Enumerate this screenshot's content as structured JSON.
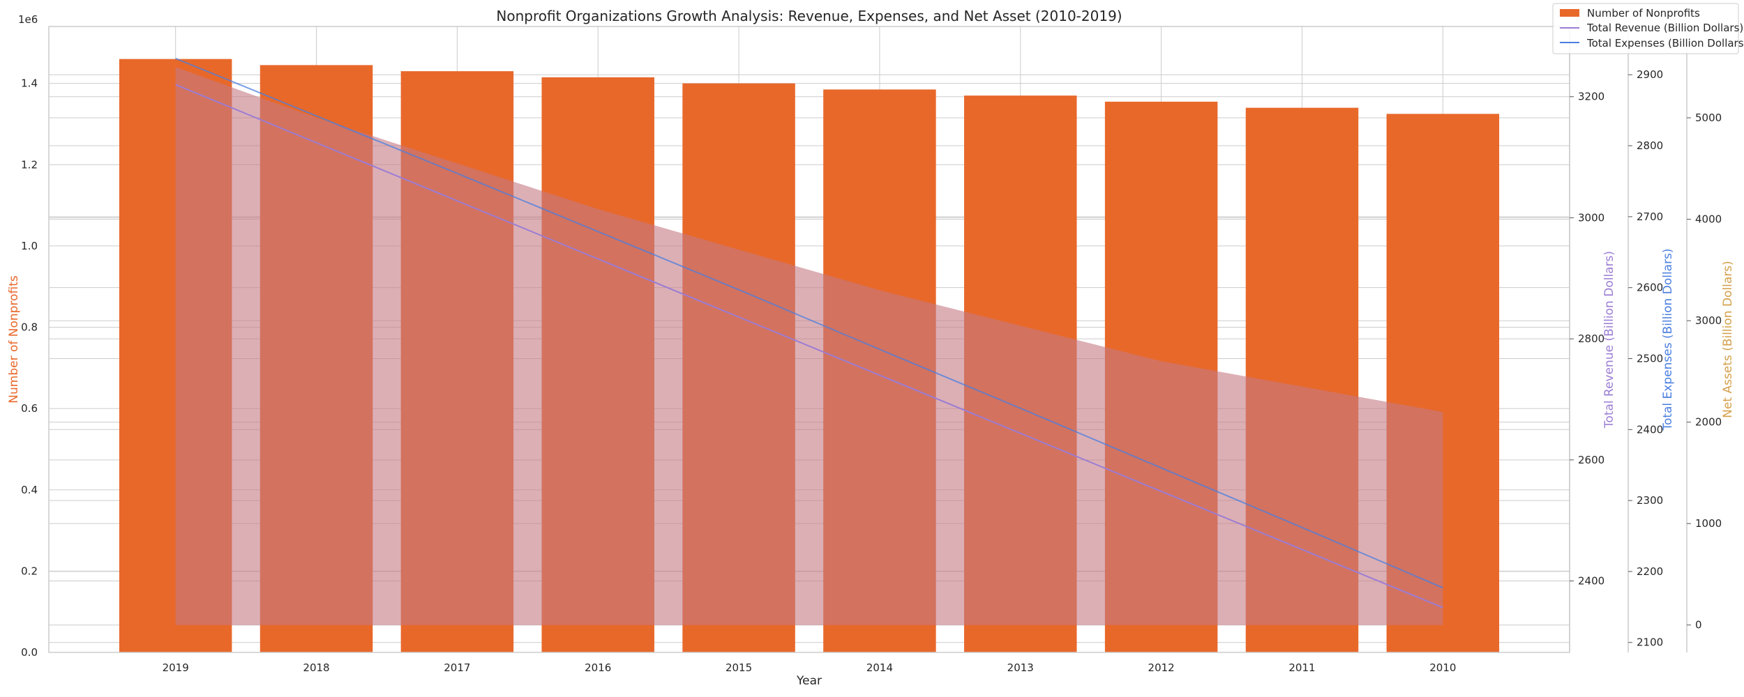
{
  "chart_data": {
    "type": "bar",
    "title": "Nonprofit Organizations Growth Analysis: Revenue, Expenses, and Net Asset (2010-2019)",
    "xlabel": "Year",
    "categories": [
      "2019",
      "2018",
      "2017",
      "2016",
      "2015",
      "2014",
      "2013",
      "2012",
      "2011",
      "2010"
    ],
    "grid": true,
    "legend_position": "top-right",
    "colors": {
      "bars": "#e8682a",
      "revenue": "#9b7dd4",
      "expenses": "#4a7fe0",
      "net_assets": "#d4a04a",
      "area": "#c47a84",
      "grid": "#cccccc",
      "spine": "#cccccc"
    },
    "axes": {
      "left": {
        "label": "Number of Nonprofits",
        "offset_label": "1e6",
        "ylim": [
          0,
          1.54
        ],
        "ticks": [
          0.0,
          0.2,
          0.4,
          0.6,
          0.8,
          1.0,
          1.2,
          1.4
        ],
        "tick_labels": [
          "0.0",
          "0.2",
          "0.4",
          "0.6",
          "0.8",
          "1.0",
          "1.2",
          "1.4"
        ]
      },
      "revenue": {
        "label": "Total Revenue (Billion Dollars)",
        "ylim": [
          2282,
          3316
        ],
        "ticks": [
          2400,
          2600,
          2800,
          3000,
          3200
        ],
        "tick_labels": [
          "2400",
          "2600",
          "2800",
          "3000",
          "3200"
        ]
      },
      "expenses": {
        "label": "Total Expenses (Billion Dollars)",
        "ylim": [
          2086,
          2968
        ],
        "ticks": [
          2100,
          2200,
          2300,
          2400,
          2500,
          2600,
          2700,
          2800,
          2900
        ],
        "tick_labels": [
          "2100",
          "2200",
          "2300",
          "2400",
          "2500",
          "2600",
          "2700",
          "2800",
          "2900"
        ]
      },
      "net_assets": {
        "label": "Net Assets (Billion Dollars)",
        "ylim": [
          -270,
          5900
        ],
        "ticks": [
          0,
          1000,
          2000,
          3000,
          4000,
          5000
        ],
        "tick_labels": [
          "0",
          "1000",
          "2000",
          "3000",
          "4000",
          "5000"
        ]
      }
    },
    "series": [
      {
        "name": "Number of Nonprofits",
        "type": "bar",
        "axis": "left",
        "values": [
          1.46,
          1.445,
          1.43,
          1.415,
          1.4,
          1.385,
          1.37,
          1.355,
          1.34,
          1.325
        ]
      },
      {
        "name": "Total Revenue (Billion Dollars)",
        "type": "line",
        "axis": "revenue",
        "values": [
          3220,
          3124,
          3028,
          2932,
          2836,
          2740,
          2644,
          2548,
          2452,
          2356
        ]
      },
      {
        "name": "Total Expenses (Billion Dollars)",
        "type": "line",
        "axis": "expenses",
        "values": [
          2923,
          2842,
          2761,
          2679,
          2597,
          2513,
          2430,
          2346,
          2262,
          2177
        ]
      },
      {
        "type": "area",
        "axis": "net_assets",
        "values": [
          5500,
          5000,
          4550,
          4100,
          3700,
          3300,
          2950,
          2600,
          2350,
          2100
        ]
      }
    ]
  }
}
